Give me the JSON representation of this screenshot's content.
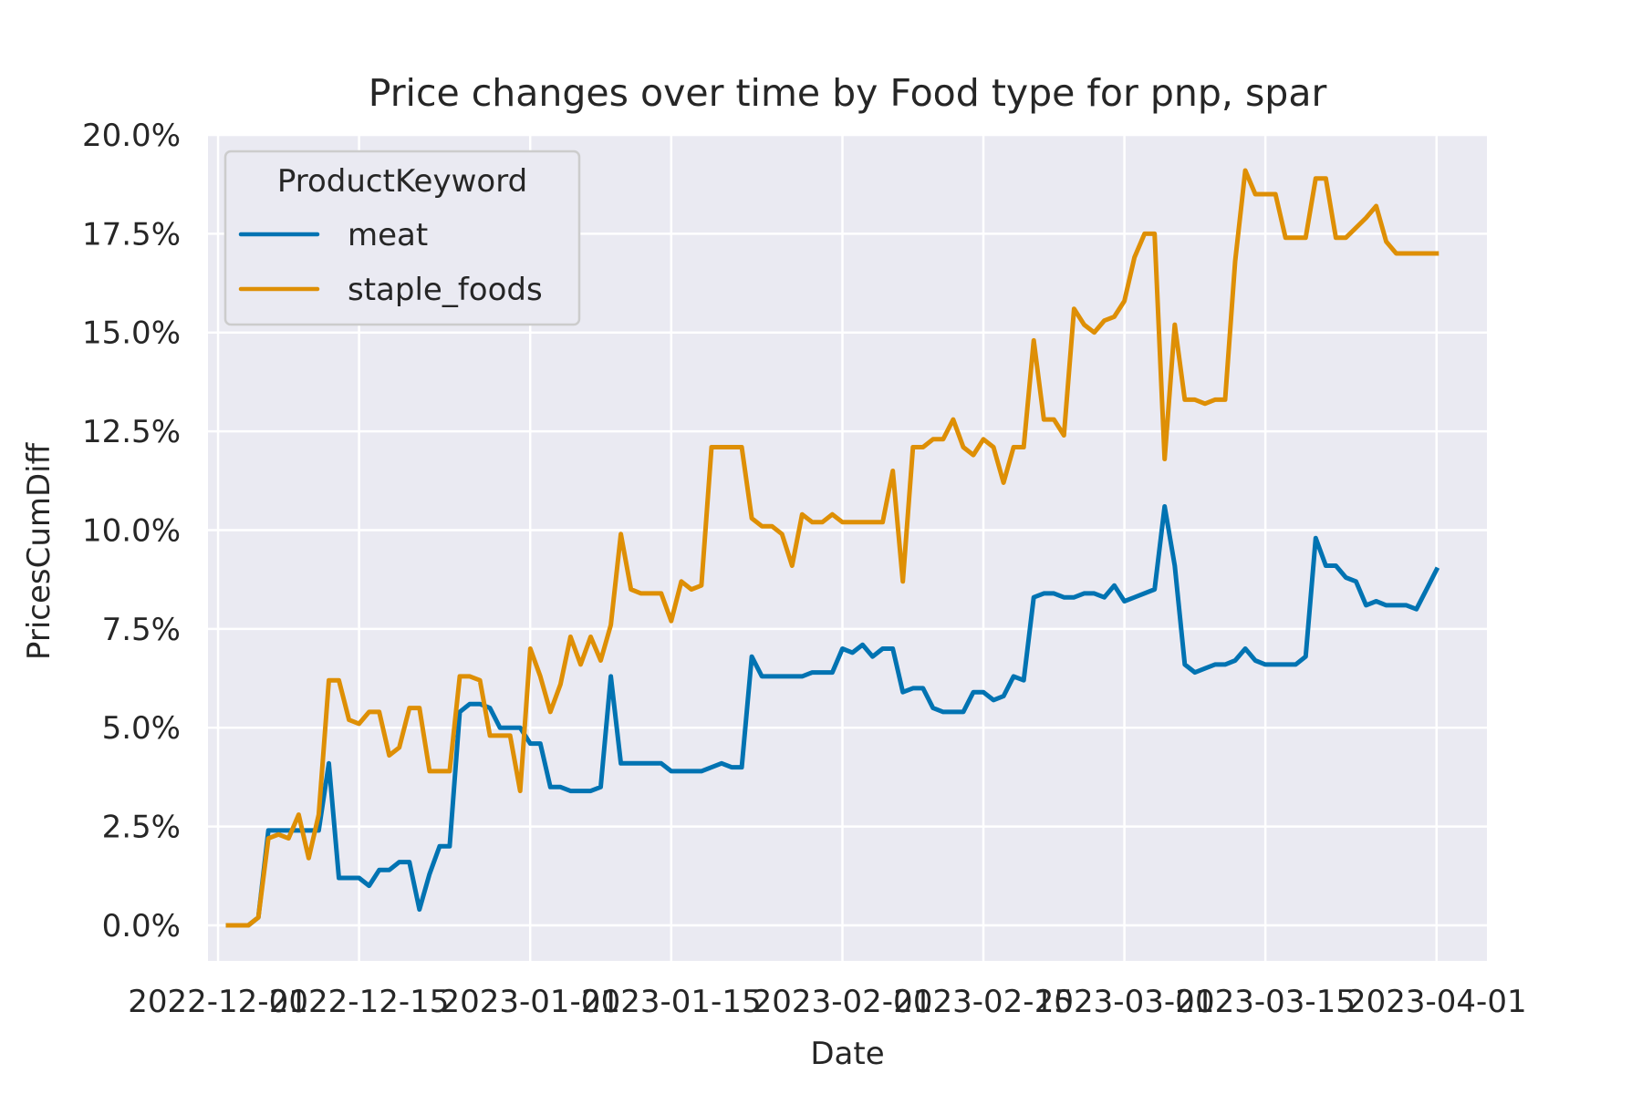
{
  "chart_data": {
    "type": "line",
    "title": "Price changes over time by Food type for pnp, spar",
    "xlabel": "Date",
    "ylabel": "PricesCumDiff",
    "x_tick_labels": [
      "2022-12-01",
      "2022-12-15",
      "2023-01-01",
      "2023-01-15",
      "2023-02-01",
      "2023-02-15",
      "2023-03-01",
      "2023-03-15",
      "2023-04-01"
    ],
    "y_tick_labels": [
      "0.0%",
      "2.5%",
      "5.0%",
      "7.5%",
      "10.0%",
      "12.5%",
      "15.0%",
      "17.5%",
      "20.0%"
    ],
    "y_ticks": [
      0,
      2.5,
      5,
      7.5,
      10,
      12.5,
      15,
      17.5,
      20
    ],
    "ylim": [
      -0.9,
      20.0
    ],
    "xlim": [
      "2022-11-30",
      "2023-04-06"
    ],
    "grid": true,
    "legend": {
      "title": "ProductKeyword",
      "placement": "top-left"
    },
    "series": [
      {
        "name": "meat",
        "color": "#0173b2",
        "points": [
          [
            "2022-12-02",
            0.0
          ],
          [
            "2022-12-04",
            0.0
          ],
          [
            "2022-12-05",
            0.2
          ],
          [
            "2022-12-06",
            2.4
          ],
          [
            "2022-12-07",
            2.4
          ],
          [
            "2022-12-08",
            2.4
          ],
          [
            "2022-12-09",
            2.4
          ],
          [
            "2022-12-10",
            2.4
          ],
          [
            "2022-12-11",
            2.4
          ],
          [
            "2022-12-12",
            4.1
          ],
          [
            "2022-12-13",
            1.2
          ],
          [
            "2022-12-14",
            1.2
          ],
          [
            "2022-12-15",
            1.2
          ],
          [
            "2022-12-16",
            1.0
          ],
          [
            "2022-12-17",
            1.4
          ],
          [
            "2022-12-18",
            1.4
          ],
          [
            "2022-12-19",
            1.6
          ],
          [
            "2022-12-20",
            1.6
          ],
          [
            "2022-12-21",
            0.4
          ],
          [
            "2022-12-22",
            1.3
          ],
          [
            "2022-12-23",
            2.0
          ],
          [
            "2022-12-24",
            2.0
          ],
          [
            "2022-12-25",
            5.4
          ],
          [
            "2022-12-26",
            5.6
          ],
          [
            "2022-12-27",
            5.6
          ],
          [
            "2022-12-28",
            5.5
          ],
          [
            "2022-12-29",
            5.0
          ],
          [
            "2022-12-30",
            5.0
          ],
          [
            "2022-12-31",
            5.0
          ],
          [
            "2023-01-01",
            4.6
          ],
          [
            "2023-01-02",
            4.6
          ],
          [
            "2023-01-03",
            3.5
          ],
          [
            "2023-01-04",
            3.5
          ],
          [
            "2023-01-05",
            3.4
          ],
          [
            "2023-01-06",
            3.4
          ],
          [
            "2023-01-07",
            3.4
          ],
          [
            "2023-01-08",
            3.5
          ],
          [
            "2023-01-09",
            6.3
          ],
          [
            "2023-01-10",
            4.1
          ],
          [
            "2023-01-11",
            4.1
          ],
          [
            "2023-01-12",
            4.1
          ],
          [
            "2023-01-13",
            4.1
          ],
          [
            "2023-01-14",
            4.1
          ],
          [
            "2023-01-15",
            3.9
          ],
          [
            "2023-01-16",
            3.9
          ],
          [
            "2023-01-17",
            3.9
          ],
          [
            "2023-01-18",
            3.9
          ],
          [
            "2023-01-20",
            4.1
          ],
          [
            "2023-01-21",
            4.0
          ],
          [
            "2023-01-22",
            4.0
          ],
          [
            "2023-01-23",
            6.8
          ],
          [
            "2023-01-24",
            6.3
          ],
          [
            "2023-01-25",
            6.3
          ],
          [
            "2023-01-26",
            6.3
          ],
          [
            "2023-01-27",
            6.3
          ],
          [
            "2023-01-28",
            6.3
          ],
          [
            "2023-01-29",
            6.4
          ],
          [
            "2023-01-30",
            6.4
          ],
          [
            "2023-01-31",
            6.4
          ],
          [
            "2023-02-01",
            7.0
          ],
          [
            "2023-02-02",
            6.9
          ],
          [
            "2023-02-03",
            7.1
          ],
          [
            "2023-02-04",
            6.8
          ],
          [
            "2023-02-05",
            7.0
          ],
          [
            "2023-02-06",
            7.0
          ],
          [
            "2023-02-07",
            5.9
          ],
          [
            "2023-02-08",
            6.0
          ],
          [
            "2023-02-09",
            6.0
          ],
          [
            "2023-02-10",
            5.5
          ],
          [
            "2023-02-11",
            5.4
          ],
          [
            "2023-02-12",
            5.4
          ],
          [
            "2023-02-13",
            5.4
          ],
          [
            "2023-02-14",
            5.9
          ],
          [
            "2023-02-15",
            5.9
          ],
          [
            "2023-02-16",
            5.7
          ],
          [
            "2023-02-17",
            5.8
          ],
          [
            "2023-02-18",
            6.3
          ],
          [
            "2023-02-19",
            6.2
          ],
          [
            "2023-02-20",
            8.3
          ],
          [
            "2023-02-21",
            8.4
          ],
          [
            "2023-02-22",
            8.4
          ],
          [
            "2023-02-23",
            8.3
          ],
          [
            "2023-02-24",
            8.3
          ],
          [
            "2023-02-25",
            8.4
          ],
          [
            "2023-02-26",
            8.4
          ],
          [
            "2023-02-27",
            8.3
          ],
          [
            "2023-02-28",
            8.6
          ],
          [
            "2023-03-01",
            8.2
          ],
          [
            "2023-03-02",
            8.3
          ],
          [
            "2023-03-04",
            8.5
          ],
          [
            "2023-03-05",
            10.6
          ],
          [
            "2023-03-06",
            9.1
          ],
          [
            "2023-03-07",
            6.6
          ],
          [
            "2023-03-08",
            6.4
          ],
          [
            "2023-03-09",
            6.5
          ],
          [
            "2023-03-10",
            6.6
          ],
          [
            "2023-03-11",
            6.6
          ],
          [
            "2023-03-12",
            6.7
          ],
          [
            "2023-03-13",
            7.0
          ],
          [
            "2023-03-14",
            6.7
          ],
          [
            "2023-03-15",
            6.6
          ],
          [
            "2023-03-16",
            6.6
          ],
          [
            "2023-03-17",
            6.6
          ],
          [
            "2023-03-18",
            6.6
          ],
          [
            "2023-03-19",
            6.8
          ],
          [
            "2023-03-20",
            9.8
          ],
          [
            "2023-03-21",
            9.1
          ],
          [
            "2023-03-22",
            9.1
          ],
          [
            "2023-03-23",
            8.8
          ],
          [
            "2023-03-24",
            8.7
          ],
          [
            "2023-03-25",
            8.1
          ],
          [
            "2023-03-26",
            8.2
          ],
          [
            "2023-03-27",
            8.1
          ],
          [
            "2023-03-28",
            8.1
          ],
          [
            "2023-03-29",
            8.1
          ],
          [
            "2023-03-30",
            8.0
          ],
          [
            "2023-03-31",
            8.5
          ],
          [
            "2023-04-01",
            9.0
          ]
        ]
      },
      {
        "name": "staple_foods",
        "color": "#de8f05",
        "points": [
          [
            "2022-12-02",
            0.0
          ],
          [
            "2022-12-04",
            0.0
          ],
          [
            "2022-12-05",
            0.2
          ],
          [
            "2022-12-06",
            2.2
          ],
          [
            "2022-12-07",
            2.3
          ],
          [
            "2022-12-08",
            2.2
          ],
          [
            "2022-12-09",
            2.8
          ],
          [
            "2022-12-10",
            1.7
          ],
          [
            "2022-12-11",
            2.8
          ],
          [
            "2022-12-12",
            6.2
          ],
          [
            "2022-12-13",
            6.2
          ],
          [
            "2022-12-14",
            5.2
          ],
          [
            "2022-12-15",
            5.1
          ],
          [
            "2022-12-16",
            5.4
          ],
          [
            "2022-12-17",
            5.4
          ],
          [
            "2022-12-18",
            4.3
          ],
          [
            "2022-12-19",
            4.5
          ],
          [
            "2022-12-20",
            5.5
          ],
          [
            "2022-12-21",
            5.5
          ],
          [
            "2022-12-22",
            3.9
          ],
          [
            "2022-12-23",
            3.9
          ],
          [
            "2022-12-24",
            3.9
          ],
          [
            "2022-12-25",
            6.3
          ],
          [
            "2022-12-26",
            6.3
          ],
          [
            "2022-12-27",
            6.2
          ],
          [
            "2022-12-28",
            4.8
          ],
          [
            "2022-12-29",
            4.8
          ],
          [
            "2022-12-30",
            4.8
          ],
          [
            "2022-12-31",
            3.4
          ],
          [
            "2023-01-01",
            7.0
          ],
          [
            "2023-01-02",
            6.3
          ],
          [
            "2023-01-03",
            5.4
          ],
          [
            "2023-01-04",
            6.1
          ],
          [
            "2023-01-05",
            7.3
          ],
          [
            "2023-01-06",
            6.6
          ],
          [
            "2023-01-07",
            7.3
          ],
          [
            "2023-01-08",
            6.7
          ],
          [
            "2023-01-09",
            7.6
          ],
          [
            "2023-01-10",
            9.9
          ],
          [
            "2023-01-11",
            8.5
          ],
          [
            "2023-01-12",
            8.4
          ],
          [
            "2023-01-13",
            8.4
          ],
          [
            "2023-01-14",
            8.4
          ],
          [
            "2023-01-15",
            7.7
          ],
          [
            "2023-01-16",
            8.7
          ],
          [
            "2023-01-17",
            8.5
          ],
          [
            "2023-01-18",
            8.6
          ],
          [
            "2023-01-19",
            12.1
          ],
          [
            "2023-01-20",
            12.1
          ],
          [
            "2023-01-21",
            12.1
          ],
          [
            "2023-01-22",
            12.1
          ],
          [
            "2023-01-23",
            10.3
          ],
          [
            "2023-01-24",
            10.1
          ],
          [
            "2023-01-25",
            10.1
          ],
          [
            "2023-01-26",
            9.9
          ],
          [
            "2023-01-27",
            9.1
          ],
          [
            "2023-01-28",
            10.4
          ],
          [
            "2023-01-29",
            10.2
          ],
          [
            "2023-01-30",
            10.2
          ],
          [
            "2023-01-31",
            10.4
          ],
          [
            "2023-02-01",
            10.2
          ],
          [
            "2023-02-02",
            10.2
          ],
          [
            "2023-02-03",
            10.2
          ],
          [
            "2023-02-04",
            10.2
          ],
          [
            "2023-02-05",
            10.2
          ],
          [
            "2023-02-06",
            11.5
          ],
          [
            "2023-02-07",
            8.7
          ],
          [
            "2023-02-08",
            12.1
          ],
          [
            "2023-02-09",
            12.1
          ],
          [
            "2023-02-10",
            12.3
          ],
          [
            "2023-02-11",
            12.3
          ],
          [
            "2023-02-12",
            12.8
          ],
          [
            "2023-02-13",
            12.1
          ],
          [
            "2023-02-14",
            11.9
          ],
          [
            "2023-02-15",
            12.3
          ],
          [
            "2023-02-16",
            12.1
          ],
          [
            "2023-02-17",
            11.2
          ],
          [
            "2023-02-18",
            12.1
          ],
          [
            "2023-02-19",
            12.1
          ],
          [
            "2023-02-20",
            14.8
          ],
          [
            "2023-02-21",
            12.8
          ],
          [
            "2023-02-22",
            12.8
          ],
          [
            "2023-02-23",
            12.4
          ],
          [
            "2023-02-24",
            15.6
          ],
          [
            "2023-02-25",
            15.2
          ],
          [
            "2023-02-26",
            15.0
          ],
          [
            "2023-02-27",
            15.3
          ],
          [
            "2023-02-28",
            15.4
          ],
          [
            "2023-03-01",
            15.8
          ],
          [
            "2023-03-02",
            16.9
          ],
          [
            "2023-03-03",
            17.5
          ],
          [
            "2023-03-04",
            17.5
          ],
          [
            "2023-03-05",
            11.8
          ],
          [
            "2023-03-06",
            15.2
          ],
          [
            "2023-03-07",
            13.3
          ],
          [
            "2023-03-08",
            13.3
          ],
          [
            "2023-03-09",
            13.2
          ],
          [
            "2023-03-10",
            13.3
          ],
          [
            "2023-03-11",
            13.3
          ],
          [
            "2023-03-12",
            16.8
          ],
          [
            "2023-03-13",
            19.1
          ],
          [
            "2023-03-14",
            18.5
          ],
          [
            "2023-03-15",
            18.5
          ],
          [
            "2023-03-16",
            18.5
          ],
          [
            "2023-03-17",
            17.4
          ],
          [
            "2023-03-18",
            17.4
          ],
          [
            "2023-03-19",
            17.4
          ],
          [
            "2023-03-20",
            18.9
          ],
          [
            "2023-03-21",
            18.9
          ],
          [
            "2023-03-22",
            17.4
          ],
          [
            "2023-03-23",
            17.4
          ],
          [
            "2023-03-25",
            17.9
          ],
          [
            "2023-03-26",
            18.2
          ],
          [
            "2023-03-27",
            17.3
          ],
          [
            "2023-03-28",
            17.0
          ],
          [
            "2023-03-29",
            17.0
          ],
          [
            "2023-03-30",
            17.0
          ],
          [
            "2023-03-31",
            17.0
          ],
          [
            "2023-04-01",
            17.0
          ]
        ]
      }
    ]
  }
}
